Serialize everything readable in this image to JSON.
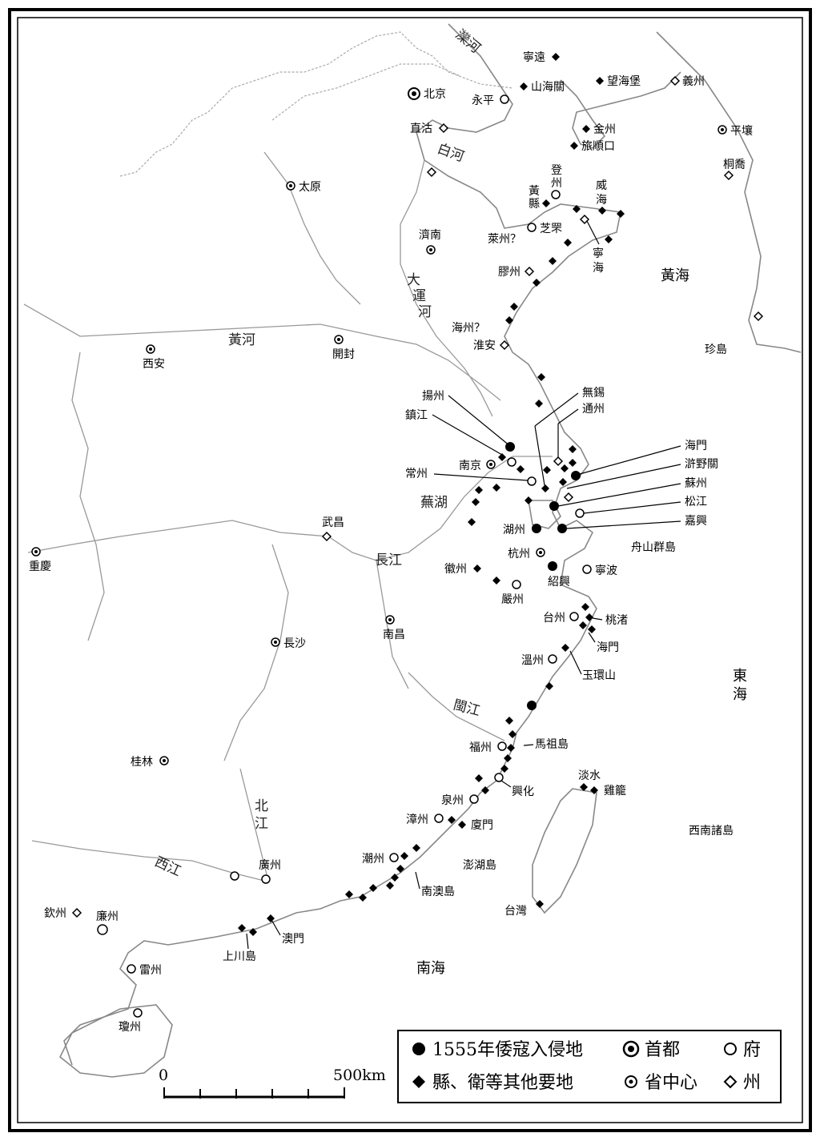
{
  "legend": {
    "invaded": "1555年倭寇入侵地",
    "capital": "首都",
    "prefecture": "府",
    "county": "縣、衛等其他要地",
    "provincial": "省中心",
    "department": "州"
  },
  "scale": {
    "start": "0",
    "end": "500km"
  },
  "seas": {
    "yellow_sea": "黃海",
    "east_sea_1": "東",
    "east_sea_2": "海",
    "south_sea": "南海"
  },
  "rivers": {
    "luan": "灤河",
    "bai": "白河",
    "canal_1": "大",
    "canal_2": "運",
    "canal_3": "河",
    "yellow": "黃河",
    "yangtze": "長江",
    "wuhu": "蕪湖",
    "min": "閩江",
    "bei_1": "北",
    "bei_2": "江",
    "xi": "西江"
  },
  "places": {
    "ningyuan": "寧遠",
    "shanhaiguan": "山海關",
    "wanghaibao": "望海堡",
    "yizhou": "義州",
    "beijing": "北京",
    "yongping": "永平",
    "zhigu": "直沽",
    "jinzhou": "金州",
    "lushunkou": "旅順口",
    "pingrang": "平壤",
    "taiyuan": "太原",
    "dengzhou_1": "登",
    "dengzhou_2": "州",
    "huangxian_1": "黃",
    "huangxian_2": "縣",
    "weihai_1": "威",
    "weihai_2": "海",
    "tongqiao": "桐喬",
    "jinan": "濟南",
    "zhifu": "芝罘",
    "laizhou": "萊州？",
    "ninghai_1": "寧",
    "ninghai_2": "海",
    "jiaozhou": "膠州",
    "haizhou": "海州？",
    "huaian": "淮安",
    "zhendao": "珍島",
    "xian": "西安",
    "kaifeng": "開封",
    "wuxi": "無錫",
    "tongzhou": "通州",
    "yangzhou": "揚州",
    "zhenjiang": "鎮江",
    "haimen_n": "海門",
    "xunyeguan": "滸野關",
    "nanjing": "南京",
    "changzhou": "常州",
    "suzhou": "蘇州",
    "songjiang": "松江",
    "jiaxing": "嘉興",
    "wuchang": "武昌",
    "huzhou": "湖州",
    "hangzhou": "杭州",
    "zhoushan": "舟山群島",
    "chongqing": "重慶",
    "huizhou": "徽州",
    "shaoxing": "紹興",
    "ningbo": "寧波",
    "yanzhou": "嚴州",
    "taizhou": "台州",
    "taozhu": "桃渚",
    "nanchang": "南昌",
    "changsha": "長沙",
    "haimen_s": "海門",
    "wenzhou": "溫州",
    "yuhuanshan": "玉環山",
    "mazu": "馬祖島",
    "fuzhou": "福州",
    "guilin": "桂林",
    "xinghua": "興化",
    "danshui": "淡水",
    "jilong": "雞籠",
    "quanzhou": "泉州",
    "zhangzhou": "漳州",
    "xiamen": "廈門",
    "xinan": "西南諸島",
    "chaozhou": "潮州",
    "penghu": "澎湖島",
    "guangzhou": "廣州",
    "nanao": "南澳島",
    "qinzhou": "欽州",
    "lianzhou": "廉州",
    "taiwan": "台灣",
    "aomen": "澳門",
    "shangchuan": "上川島",
    "leizhou": "雷州",
    "qiongzhou": "瓊州"
  }
}
